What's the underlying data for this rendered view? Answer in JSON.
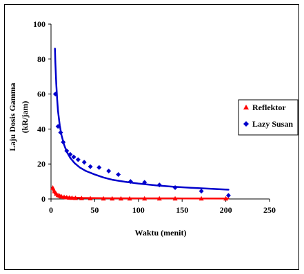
{
  "chart_data": {
    "type": "scatter",
    "xlabel": "Waktu (menit)",
    "ylabel_line1": "Laju Dosis Gamma",
    "ylabel_line2": "(kR/jam)",
    "xlim": [
      0,
      250
    ],
    "ylim": [
      0,
      100
    ],
    "xticks": [
      0,
      50,
      100,
      150,
      200,
      250
    ],
    "yticks": [
      0,
      20,
      40,
      60,
      80,
      100
    ],
    "grid": false,
    "legend_position": "right",
    "series": [
      {
        "name": "Reflektor",
        "color": "#ff0000",
        "marker": "triangle",
        "points": [
          [
            2,
            6.5
          ],
          [
            4,
            4.5
          ],
          [
            6,
            3.0
          ],
          [
            8,
            2.2
          ],
          [
            10,
            1.8
          ],
          [
            12,
            1.5
          ],
          [
            15,
            1.2
          ],
          [
            18,
            1.0
          ],
          [
            21,
            0.8
          ],
          [
            24,
            0.7
          ],
          [
            28,
            0.6
          ],
          [
            35,
            0.5
          ],
          [
            45,
            0.4
          ],
          [
            60,
            0.3
          ],
          [
            70,
            0.3
          ],
          [
            80,
            0.3
          ],
          [
            90,
            0.3
          ],
          [
            107,
            0.3
          ],
          [
            124,
            0.3
          ],
          [
            142,
            0.3
          ],
          [
            172,
            0.3
          ],
          [
            200,
            0.3
          ]
        ],
        "fit": [
          [
            1.5,
            6.3
          ],
          [
            3,
            4.0
          ],
          [
            5,
            2.6
          ],
          [
            8,
            1.8
          ],
          [
            12,
            1.3
          ],
          [
            18,
            1.0
          ],
          [
            25,
            0.8
          ],
          [
            35,
            0.6
          ],
          [
            50,
            0.5
          ],
          [
            70,
            0.4
          ],
          [
            100,
            0.35
          ],
          [
            150,
            0.3
          ],
          [
            203,
            0.25
          ]
        ]
      },
      {
        "name": "Lazy Susan",
        "color": "#0000cc",
        "marker": "diamond",
        "points": [
          [
            5,
            60
          ],
          [
            8,
            41.5
          ],
          [
            11,
            38
          ],
          [
            14,
            32.5
          ],
          [
            18,
            27.5
          ],
          [
            22,
            25.5
          ],
          [
            26,
            24
          ],
          [
            31,
            22.5
          ],
          [
            38,
            21
          ],
          [
            45,
            18.5
          ],
          [
            55,
            18
          ],
          [
            66,
            16
          ],
          [
            77,
            14
          ],
          [
            91,
            10
          ],
          [
            107,
            9.5
          ],
          [
            124,
            8
          ],
          [
            142,
            6.5
          ],
          [
            172,
            4.5
          ],
          [
            203,
            2
          ]
        ],
        "fit": [
          [
            4.5,
            86
          ],
          [
            5,
            78
          ],
          [
            6,
            66
          ],
          [
            7,
            57
          ],
          [
            8,
            50.5
          ],
          [
            10,
            42
          ],
          [
            12,
            36.5
          ],
          [
            15,
            31
          ],
          [
            18,
            27
          ],
          [
            22,
            23.5
          ],
          [
            27,
            20.5
          ],
          [
            33,
            18
          ],
          [
            40,
            16
          ],
          [
            50,
            14
          ],
          [
            60,
            12.3
          ],
          [
            70,
            11
          ],
          [
            85,
            9.8
          ],
          [
            100,
            8.8
          ],
          [
            120,
            7.8
          ],
          [
            140,
            7
          ],
          [
            160,
            6.4
          ],
          [
            180,
            5.9
          ],
          [
            203,
            5.3
          ]
        ]
      }
    ]
  }
}
